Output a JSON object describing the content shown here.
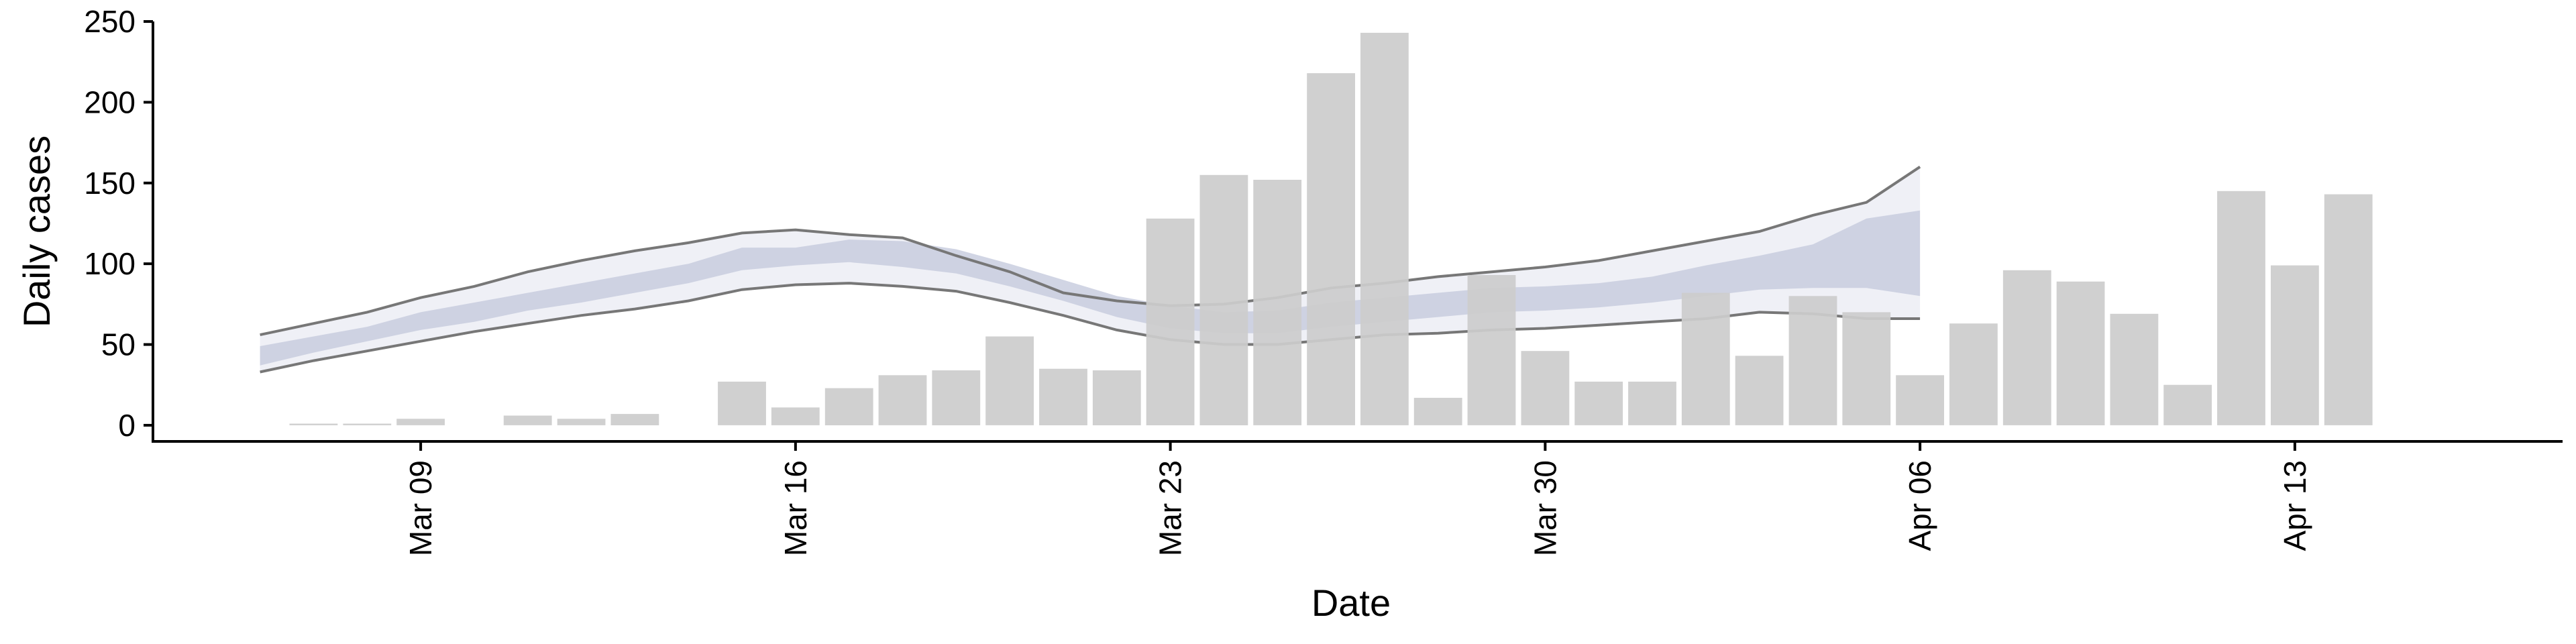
{
  "chart_data": {
    "type": "bar",
    "title": "",
    "xlabel": "Date",
    "ylabel": "Daily cases",
    "ylim": [
      -10,
      255
    ],
    "y_ticks": [
      0,
      50,
      100,
      150,
      200,
      250
    ],
    "x_ticks": [
      {
        "date": "2020-03-09",
        "label": "Mar 09"
      },
      {
        "date": "2020-03-16",
        "label": "Mar 16"
      },
      {
        "date": "2020-03-23",
        "label": "Mar 23"
      },
      {
        "date": "2020-03-30",
        "label": "Mar 30"
      },
      {
        "date": "2020-04-06",
        "label": "Apr 06"
      },
      {
        "date": "2020-04-13",
        "label": "Apr 13"
      }
    ],
    "xlim": [
      "2020-03-04",
      "2020-04-18"
    ],
    "grid": false,
    "colors": {
      "bars": "#cccccc",
      "band_outer": "#e9ebf3",
      "band_inner": "#c5cadd",
      "band_lines": "#777777"
    },
    "series": [
      {
        "type": "bar",
        "x": [
          "2020-03-07",
          "2020-03-08",
          "2020-03-09",
          "2020-03-10",
          "2020-03-11",
          "2020-03-12",
          "2020-03-13",
          "2020-03-14",
          "2020-03-15",
          "2020-03-16",
          "2020-03-17",
          "2020-03-18",
          "2020-03-19",
          "2020-03-20",
          "2020-03-21",
          "2020-03-22",
          "2020-03-23",
          "2020-03-24",
          "2020-03-25",
          "2020-03-26",
          "2020-03-27",
          "2020-03-28",
          "2020-03-29",
          "2020-03-30",
          "2020-03-31",
          "2020-04-01",
          "2020-04-02",
          "2020-04-03",
          "2020-04-04",
          "2020-04-05",
          "2020-04-06",
          "2020-04-07",
          "2020-04-08",
          "2020-04-09",
          "2020-04-10",
          "2020-04-11",
          "2020-04-12",
          "2020-04-13",
          "2020-04-14",
          "2020-04-15"
        ],
        "values": [
          1,
          1,
          4,
          0,
          6,
          4,
          7,
          0,
          27,
          11,
          23,
          31,
          34,
          55,
          35,
          34,
          128,
          155,
          152,
          218,
          243,
          17,
          93,
          46,
          27,
          27,
          82,
          43,
          80,
          70,
          31,
          63,
          96,
          89,
          69,
          25,
          145,
          99,
          143,
          0
        ]
      },
      {
        "type": "band",
        "x": [
          "2020-03-06",
          "2020-03-07",
          "2020-03-08",
          "2020-03-09",
          "2020-03-10",
          "2020-03-11",
          "2020-03-12",
          "2020-03-13",
          "2020-03-14",
          "2020-03-15",
          "2020-03-16",
          "2020-03-17",
          "2020-03-18",
          "2020-03-19",
          "2020-03-20",
          "2020-03-21",
          "2020-03-22",
          "2020-03-23",
          "2020-03-24",
          "2020-03-25",
          "2020-03-26",
          "2020-03-27",
          "2020-03-28",
          "2020-03-29",
          "2020-03-30",
          "2020-03-31",
          "2020-04-01",
          "2020-04-02",
          "2020-04-03",
          "2020-04-04",
          "2020-04-05",
          "2020-04-06"
        ],
        "lower": [
          33,
          40,
          46,
          52,
          58,
          63,
          68,
          72,
          77,
          84,
          87,
          88,
          86,
          83,
          76,
          68,
          59,
          53,
          50,
          50,
          53,
          56,
          57,
          59,
          60,
          62,
          64,
          66,
          70,
          69,
          66,
          66
        ],
        "upper": [
          56,
          63,
          70,
          79,
          86,
          95,
          102,
          108,
          113,
          119,
          121,
          118,
          116,
          105,
          95,
          82,
          77,
          74,
          75,
          79,
          85,
          88,
          92,
          95,
          98,
          102,
          108,
          114,
          120,
          130,
          138,
          160
        ],
        "inner_lower": [
          37,
          45,
          52,
          59,
          64,
          71,
          76,
          82,
          88,
          96,
          99,
          101,
          98,
          94,
          86,
          77,
          67,
          60,
          57,
          57,
          61,
          64,
          67,
          70,
          71,
          73,
          76,
          80,
          84,
          85,
          85,
          80
        ],
        "inner_upper": [
          49,
          55,
          61,
          70,
          76,
          82,
          88,
          94,
          100,
          110,
          110,
          115,
          114,
          109,
          100,
          90,
          80,
          74,
          70,
          71,
          76,
          79,
          82,
          85,
          86,
          88,
          92,
          99,
          105,
          112,
          128,
          133
        ]
      }
    ]
  }
}
